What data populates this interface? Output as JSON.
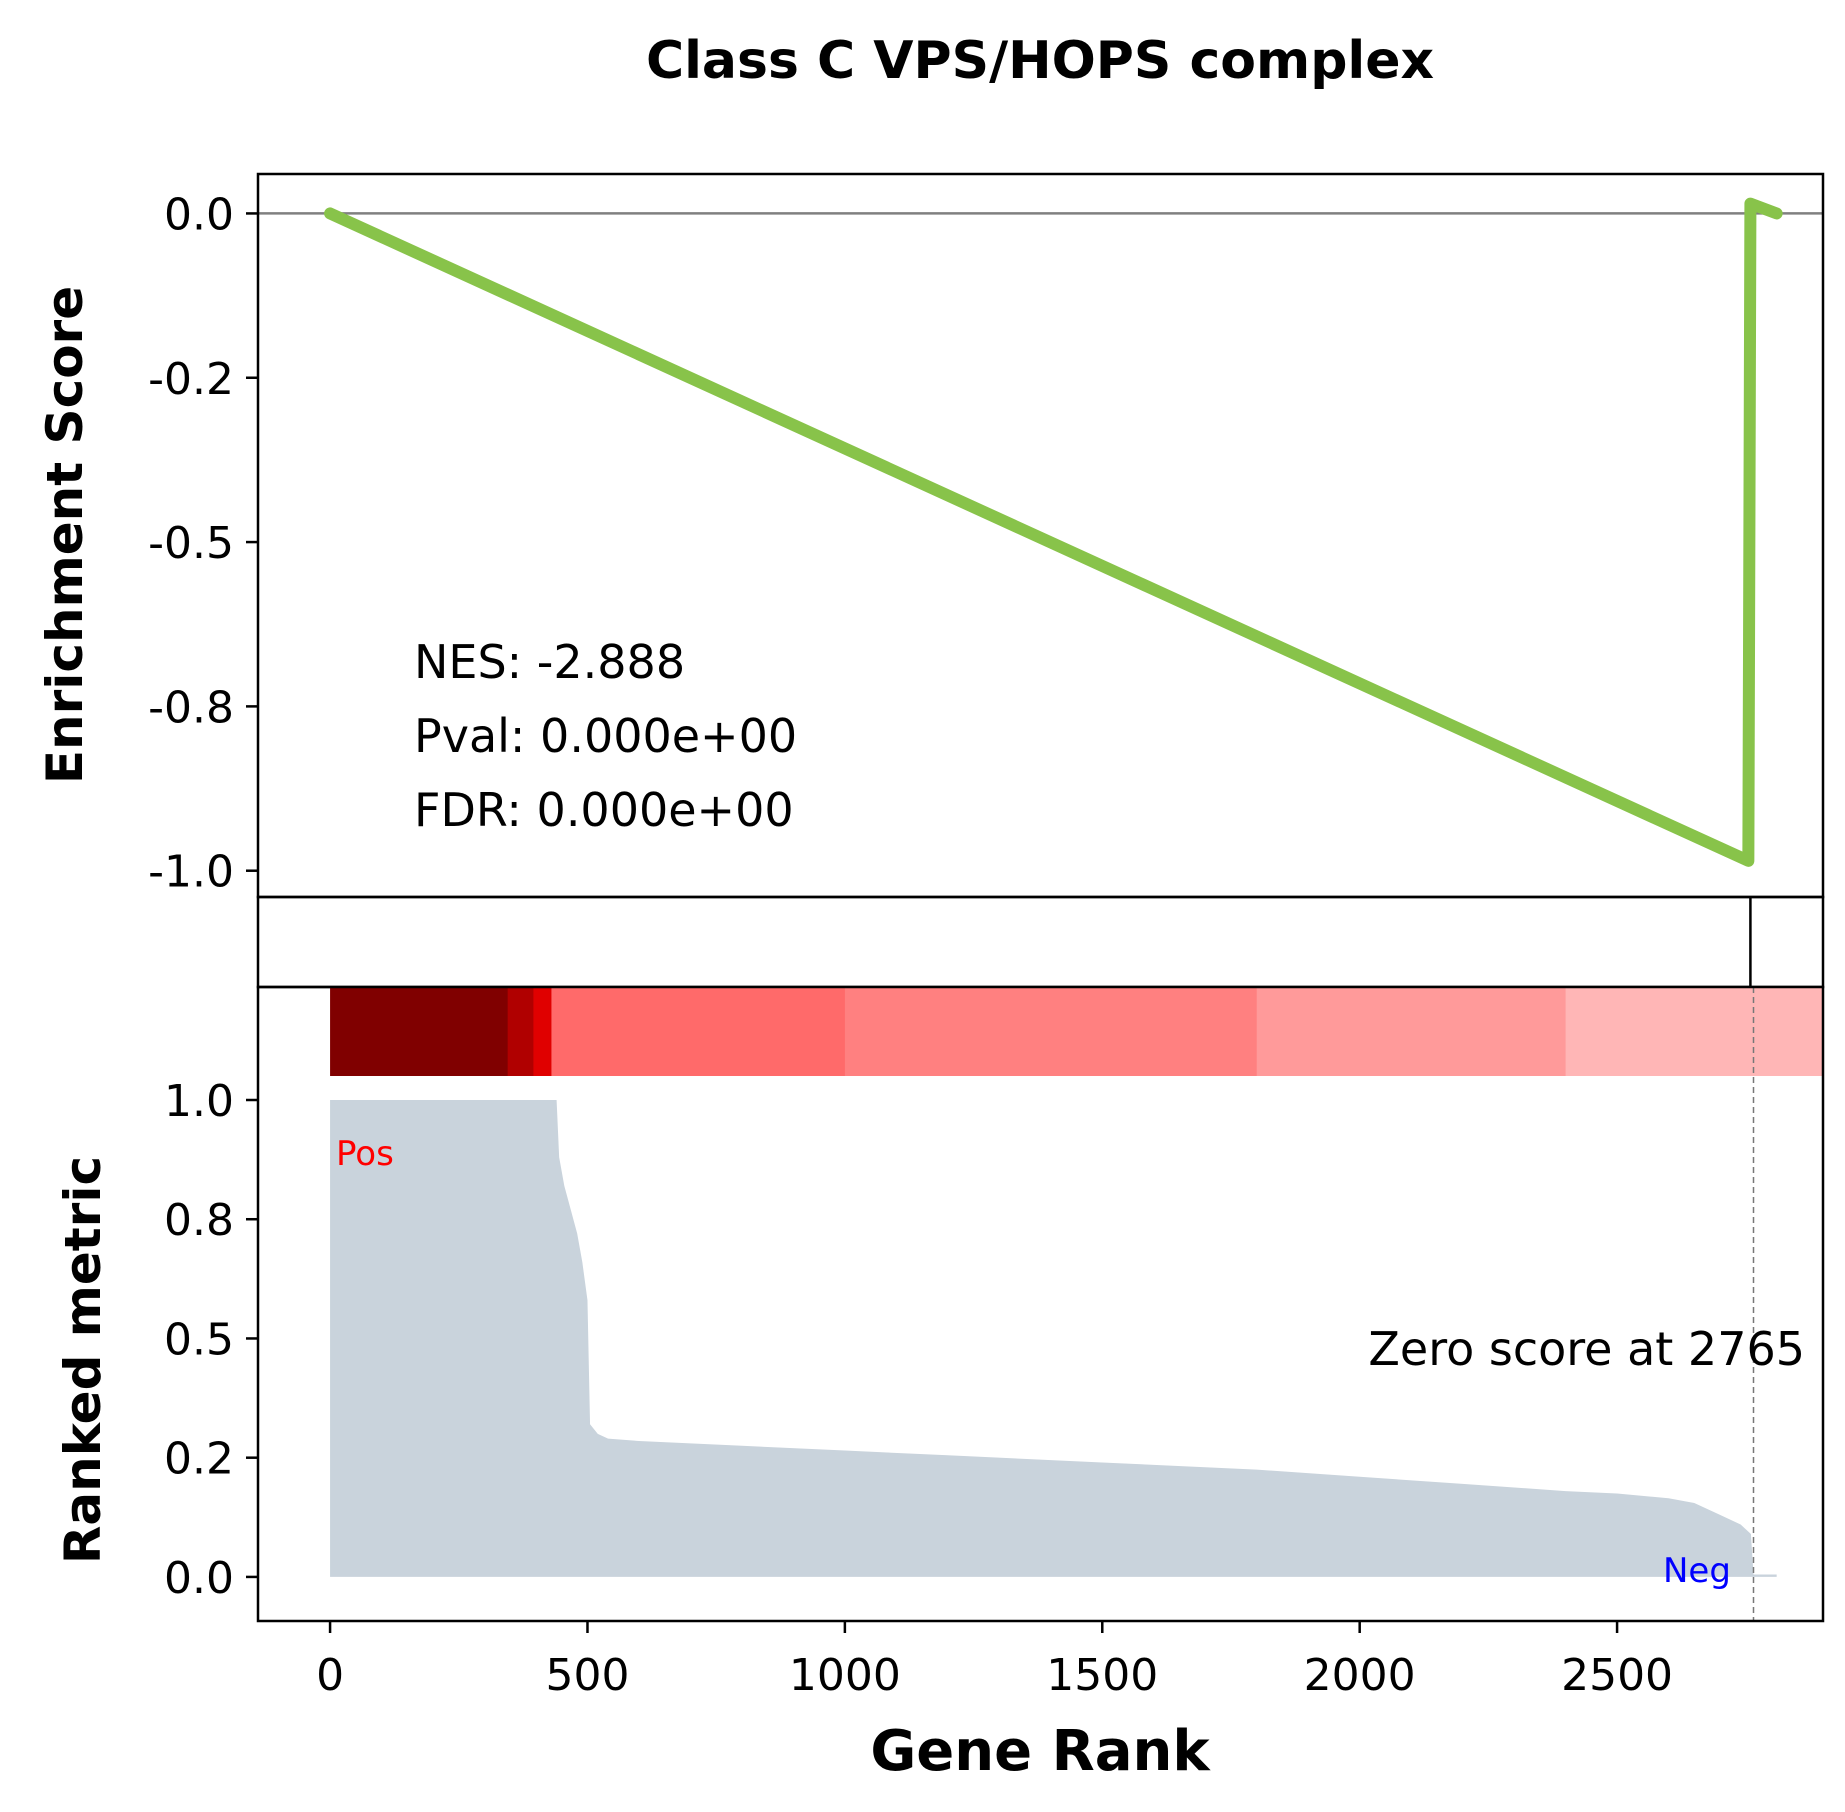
{
  "chart_data": {
    "type": "line",
    "title": "Class C VPS/HOPS complex",
    "xlabel": "Gene Rank",
    "xlim": [
      -140,
      2900
    ],
    "xticks": [
      0,
      500,
      1000,
      1500,
      2000,
      2500
    ],
    "x_tick_labels": [
      "0",
      "500",
      "1000",
      "1500",
      "2000",
      "2500"
    ],
    "enrichment": {
      "ylabel": "Enrichment Score",
      "ylim": [
        -1.04,
        0.06
      ],
      "yticks": [
        0.0,
        -0.25,
        -0.5,
        -0.75,
        -1.0
      ],
      "y_tick_labels": [
        "0.0",
        "-0.2",
        "-0.5",
        "-0.8",
        "-1.0"
      ],
      "zero_line": 0,
      "series": [
        {
          "color": "#88c34a",
          "x": [
            0,
            2755,
            2759,
            2810
          ],
          "y": [
            0.0,
            -0.985,
            0.015,
            0.0
          ]
        }
      ],
      "stats": [
        "NES: -2.888",
        "Pval: 0.000e+00",
        "FDR: 0.000e+00"
      ]
    },
    "hits": {
      "positions": [
        2759
      ],
      "color": "#000000"
    },
    "heatmap": {
      "x_end": 2900,
      "segments": [
        {
          "x0": 0,
          "x1": 345,
          "color": "#800000"
        },
        {
          "x0": 345,
          "x1": 395,
          "color": "#b00000"
        },
        {
          "x0": 395,
          "x1": 430,
          "color": "#e00000"
        },
        {
          "x0": 430,
          "x1": 1000,
          "color": "#ff6a6a"
        },
        {
          "x0": 1000,
          "x1": 1800,
          "color": "#ff8080"
        },
        {
          "x0": 1800,
          "x1": 2400,
          "color": "#ff9a9a"
        },
        {
          "x0": 2400,
          "x1": 2900,
          "color": "#ffb6b6"
        }
      ]
    },
    "ranked_metric": {
      "ylabel": "Ranked metric",
      "ylim": [
        -0.04,
        1.0
      ],
      "yticks": [
        0.0,
        0.25,
        0.5,
        0.75,
        1.0
      ],
      "y_tick_labels": [
        "0.0",
        "0.2",
        "0.5",
        "0.8",
        "1.0"
      ],
      "fill_color": "#c9d3dc",
      "x": [
        0,
        440,
        445,
        455,
        465,
        480,
        490,
        500,
        505,
        520,
        540,
        600,
        700,
        800,
        1000,
        1200,
        1500,
        1800,
        2000,
        2200,
        2400,
        2500,
        2600,
        2650,
        2700,
        2740,
        2760,
        2765,
        2810
      ],
      "y": [
        1.0,
        1.0,
        0.88,
        0.82,
        0.78,
        0.72,
        0.66,
        0.58,
        0.32,
        0.3,
        0.29,
        0.285,
        0.28,
        0.275,
        0.265,
        0.255,
        0.24,
        0.225,
        0.21,
        0.195,
        0.18,
        0.175,
        0.165,
        0.155,
        0.13,
        0.11,
        0.09,
        0.005,
        0.005
      ],
      "zero_crossing": 2765,
      "zero_label": "Zero score at 2765",
      "pos_label": "Pos",
      "neg_label": "Neg",
      "pos_color": "#ff0000",
      "neg_color": "#0000ff"
    }
  }
}
